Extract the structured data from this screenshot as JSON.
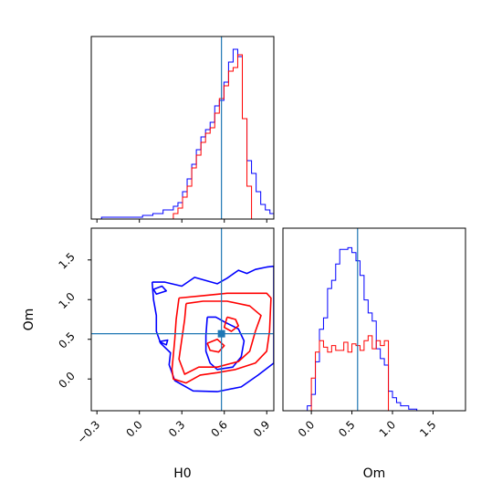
{
  "chart_data": [
    {
      "panel": "H0-marginal",
      "type": "histogram",
      "x_range": [
        -0.34,
        0.95
      ],
      "y_ticks_shown": false,
      "truth": 0.58,
      "bin_edges": [
        -0.34,
        -0.2675,
        -0.195,
        -0.1225,
        -0.05,
        0.0225,
        0.095,
        0.1675,
        0.24,
        0.2725,
        0.305,
        0.3375,
        0.37,
        0.4025,
        0.435,
        0.4675,
        0.5,
        0.5325,
        0.565,
        0.5975,
        0.63,
        0.6625,
        0.695,
        0.7275,
        0.76,
        0.7925,
        0.825,
        0.8575,
        0.89,
        0.9225,
        0.95
      ],
      "series": [
        {
          "name": "",
          "color": "#0000ff",
          "counts": [
            0,
            0.01,
            0.01,
            0.01,
            0.01,
            0.02,
            0.03,
            0.05,
            0.07,
            0.09,
            0.15,
            0.22,
            0.3,
            0.38,
            0.45,
            0.49,
            0.53,
            0.62,
            0.65,
            0.75,
            0.86,
            0.93,
            0.89,
            0.55,
            0.32,
            0.25,
            0.15,
            0.08,
            0.05,
            0.03
          ]
        },
        {
          "name": "",
          "color": "#ff0000",
          "counts": [
            0,
            0,
            0,
            0,
            0,
            0,
            0,
            0,
            0.03,
            0.06,
            0.12,
            0.18,
            0.28,
            0.35,
            0.42,
            0.47,
            0.5,
            0.58,
            0.66,
            0.73,
            0.81,
            0.83,
            0.9,
            0.55,
            0.18,
            0,
            0,
            0,
            0,
            0
          ]
        }
      ],
      "x_ticks": [
        -0.3,
        0.0,
        0.3,
        0.6,
        0.9
      ]
    },
    {
      "panel": "Om-marginal",
      "type": "histogram",
      "x_range": [
        -0.35,
        1.9
      ],
      "y_ticks_shown": false,
      "truth": 0.57,
      "bin_edges": [
        -0.35,
        -0.25,
        -0.15,
        -0.05,
        0,
        0.05,
        0.1,
        0.15,
        0.2,
        0.25,
        0.3,
        0.35,
        0.4,
        0.45,
        0.5,
        0.55,
        0.6,
        0.65,
        0.7,
        0.75,
        0.8,
        0.85,
        0.9,
        0.95,
        1.0,
        1.05,
        1.1,
        1.2,
        1.3,
        1.45,
        1.9
      ],
      "series": [
        {
          "name": "",
          "color": "#0000ff",
          "counts": [
            0,
            0,
            0,
            0.03,
            0.1,
            0.3,
            0.5,
            0.57,
            0.75,
            0.8,
            0.9,
            0.99,
            0.99,
            1.0,
            0.97,
            0.92,
            0.83,
            0.68,
            0.6,
            0.55,
            0.38,
            0.32,
            0.28,
            0.12,
            0.08,
            0.05,
            0.03,
            0.01,
            0,
            0
          ]
        },
        {
          "name": "",
          "color": "#ff0000",
          "counts": [
            0,
            0,
            0,
            0,
            0.2,
            0.36,
            0.43,
            0.39,
            0.36,
            0.4,
            0.37,
            0.37,
            0.42,
            0.36,
            0.41,
            0.4,
            0.37,
            0.43,
            0.46,
            0.38,
            0.43,
            0.4,
            0.43,
            0,
            0,
            0,
            0,
            0,
            0,
            0
          ]
        }
      ],
      "x_ticks": [
        0.0,
        0.5,
        1.0,
        1.5
      ],
      "xlabel": "Om"
    },
    {
      "panel": "H0-Om-joint",
      "type": "contour",
      "x_range": [
        -0.34,
        0.95
      ],
      "y_range": [
        -0.4,
        1.9
      ],
      "truth": [
        0.58,
        0.57
      ],
      "x_ticks": [
        -0.3,
        0.0,
        0.3,
        0.6,
        0.9
      ],
      "y_ticks": [
        0.0,
        0.5,
        1.0,
        1.5
      ],
      "xlabel": "H0",
      "ylabel": "Om",
      "contours": [
        {
          "color": "#0000ff",
          "points": [
            [
              0.09,
              1.22
            ],
            [
              0.18,
              1.22
            ],
            [
              0.3,
              1.17
            ],
            [
              0.39,
              1.28
            ],
            [
              0.55,
              1.2
            ],
            [
              0.62,
              1.27
            ],
            [
              0.7,
              1.37
            ],
            [
              0.76,
              1.33
            ],
            [
              0.82,
              1.38
            ],
            [
              0.9,
              1.41
            ],
            [
              0.95,
              1.42
            ],
            [
              0.95,
              0.2
            ],
            [
              0.84,
              0.05
            ],
            [
              0.72,
              -0.1
            ],
            [
              0.55,
              -0.16
            ],
            [
              0.38,
              -0.15
            ],
            [
              0.25,
              -0.02
            ],
            [
              0.21,
              0.18
            ],
            [
              0.22,
              0.33
            ],
            [
              0.15,
              0.45
            ],
            [
              0.12,
              0.6
            ],
            [
              0.12,
              0.8
            ],
            [
              0.1,
              1.0
            ],
            [
              0.09,
              1.22
            ]
          ]
        },
        {
          "color": "#0000ff",
          "points": [
            [
              0.48,
              0.78
            ],
            [
              0.54,
              0.78
            ],
            [
              0.6,
              0.72
            ],
            [
              0.7,
              0.63
            ],
            [
              0.74,
              0.48
            ],
            [
              0.72,
              0.28
            ],
            [
              0.66,
              0.15
            ],
            [
              0.55,
              0.12
            ],
            [
              0.5,
              0.2
            ],
            [
              0.47,
              0.35
            ],
            [
              0.47,
              0.55
            ],
            [
              0.48,
              0.78
            ]
          ]
        },
        {
          "color": "#0000ff",
          "points": [
            [
              0.1,
              1.13
            ],
            [
              0.16,
              1.17
            ],
            [
              0.19,
              1.11
            ],
            [
              0.12,
              1.07
            ],
            [
              0.1,
              1.13
            ]
          ]
        },
        {
          "color": "#0000ff",
          "points": [
            [
              0.14,
              0.47
            ],
            [
              0.2,
              0.49
            ],
            [
              0.19,
              0.43
            ],
            [
              0.14,
              0.47
            ]
          ]
        },
        {
          "color": "#ff0000",
          "points": [
            [
              0.28,
              1.02
            ],
            [
              0.45,
              1.05
            ],
            [
              0.62,
              1.08
            ],
            [
              0.9,
              1.08
            ],
            [
              0.93,
              1.02
            ],
            [
              0.92,
              0.6
            ],
            [
              0.9,
              0.35
            ],
            [
              0.82,
              0.2
            ],
            [
              0.68,
              0.12
            ],
            [
              0.55,
              0.08
            ],
            [
              0.43,
              0.05
            ],
            [
              0.33,
              -0.05
            ],
            [
              0.24,
              0.0
            ],
            [
              0.23,
              0.12
            ],
            [
              0.24,
              0.3
            ],
            [
              0.25,
              0.5
            ],
            [
              0.26,
              0.75
            ],
            [
              0.28,
              1.02
            ]
          ]
        },
        {
          "color": "#ff0000",
          "points": [
            [
              0.33,
              0.95
            ],
            [
              0.45,
              0.98
            ],
            [
              0.62,
              0.98
            ],
            [
              0.78,
              0.92
            ],
            [
              0.86,
              0.8
            ],
            [
              0.82,
              0.6
            ],
            [
              0.78,
              0.35
            ],
            [
              0.7,
              0.22
            ],
            [
              0.55,
              0.15
            ],
            [
              0.42,
              0.15
            ],
            [
              0.32,
              0.06
            ],
            [
              0.28,
              0.25
            ],
            [
              0.3,
              0.5
            ],
            [
              0.32,
              0.75
            ],
            [
              0.33,
              0.95
            ]
          ]
        },
        {
          "color": "#ff0000",
          "points": [
            [
              0.62,
              0.78
            ],
            [
              0.68,
              0.75
            ],
            [
              0.7,
              0.67
            ],
            [
              0.65,
              0.6
            ],
            [
              0.6,
              0.65
            ],
            [
              0.62,
              0.78
            ]
          ]
        },
        {
          "color": "#ff0000",
          "points": [
            [
              0.48,
              0.45
            ],
            [
              0.55,
              0.5
            ],
            [
              0.6,
              0.42
            ],
            [
              0.56,
              0.34
            ],
            [
              0.5,
              0.36
            ],
            [
              0.48,
              0.45
            ]
          ]
        }
      ]
    }
  ]
}
